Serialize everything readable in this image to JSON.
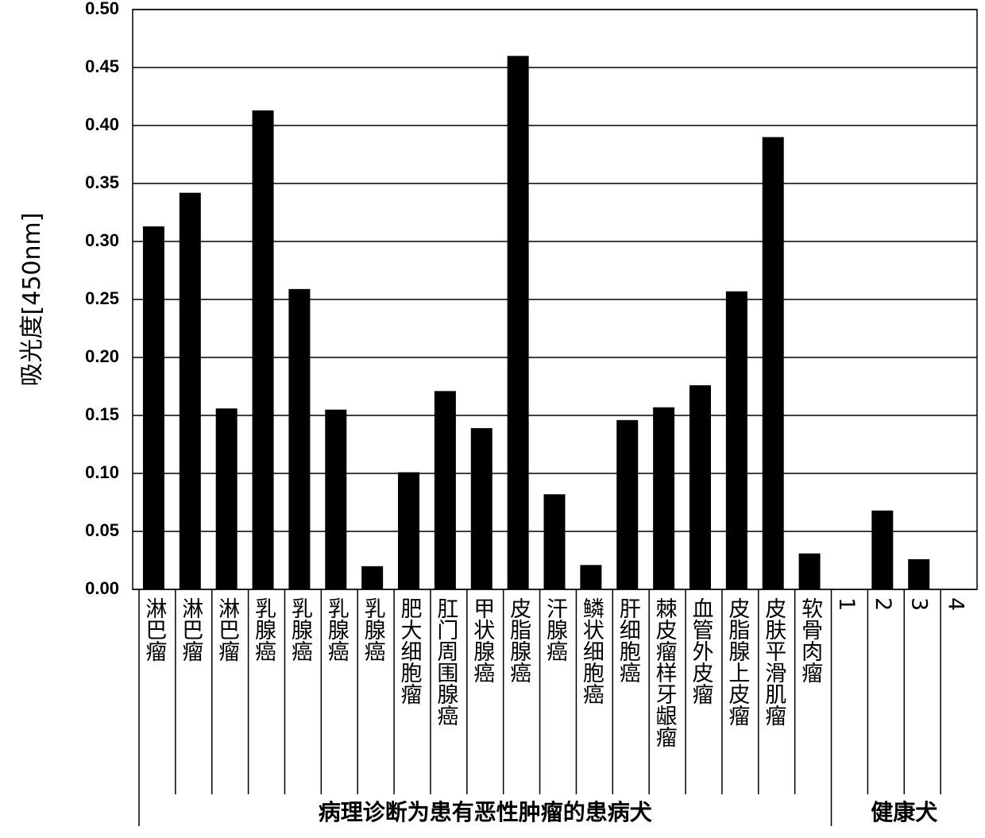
{
  "chart_data": {
    "type": "bar",
    "ylabel": "吸光度[450nm]",
    "ylim": [
      0,
      0.5
    ],
    "yticks": [
      {
        "value": 0,
        "label": "0.00"
      },
      {
        "value": 0.05,
        "label": "0.05"
      },
      {
        "value": 0.1,
        "label": "0.10"
      },
      {
        "value": 0.15,
        "label": "0.15"
      },
      {
        "value": 0.2,
        "label": "0.20"
      },
      {
        "value": 0.25,
        "label": "0.25"
      },
      {
        "value": 0.3,
        "label": "0.30"
      },
      {
        "value": 0.35,
        "label": "0.35"
      },
      {
        "value": 0.4,
        "label": "0.40"
      },
      {
        "value": 0.45,
        "label": "0.45"
      },
      {
        "value": 0.5,
        "label": "0.50"
      }
    ],
    "grid": true,
    "color": "#000000",
    "groups": [
      {
        "label": "病理诊断为患有恶性肿瘤的患病犬",
        "categories": [
          "淋巴瘤",
          "淋巴瘤",
          "淋巴瘤",
          "乳腺癌",
          "乳腺癌",
          "乳腺癌",
          "乳腺癌",
          "肥大细胞瘤",
          "肛门周围腺癌",
          "甲状腺癌",
          "皮脂腺癌",
          "汗腺癌",
          "鳞状细胞癌",
          "肝细胞癌",
          "棘皮瘤样牙龈瘤",
          "血管外皮瘤",
          "皮脂腺上皮瘤",
          "皮肤平滑肌瘤",
          "软骨肉瘤"
        ],
        "values": [
          0.313,
          0.342,
          0.156,
          0.413,
          0.259,
          0.155,
          0.02,
          0.101,
          0.171,
          0.139,
          0.46,
          0.082,
          0.021,
          0.146,
          0.157,
          0.176,
          0.257,
          0.39,
          0.031
        ]
      },
      {
        "label": "健康犬",
        "categories": [
          "1",
          "2",
          "3",
          "4"
        ],
        "values": [
          0,
          0.068,
          0.026,
          0
        ]
      }
    ]
  }
}
